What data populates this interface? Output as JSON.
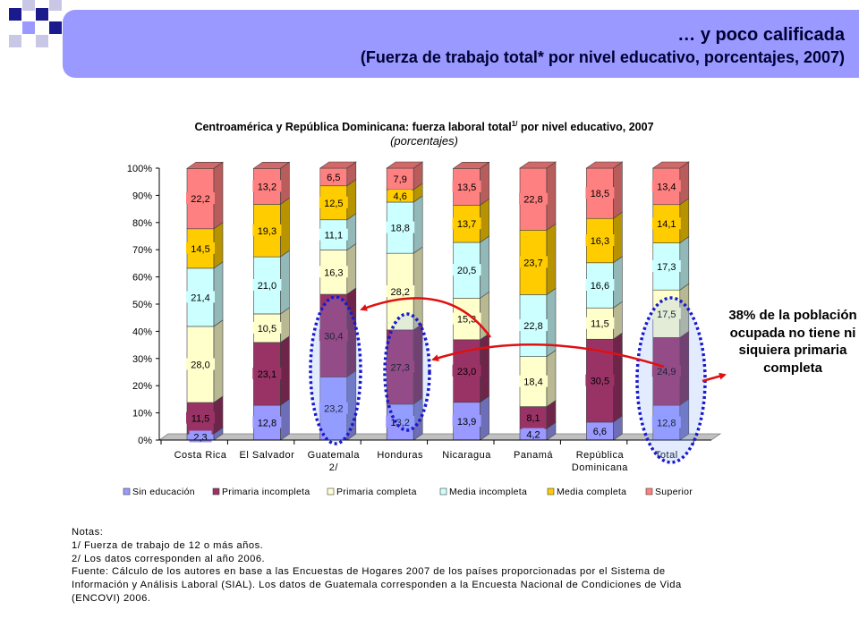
{
  "header": {
    "title": "… y poco calificada",
    "subtitle": "(Fuerza de trabajo total* por nivel educativo, porcentajes, 2007)"
  },
  "colors": {
    "banner": "#9999ff",
    "sin_educacion": "#9999ff",
    "primaria_incompleta": "#993366",
    "primaria_completa": "#ffffcc",
    "media_incompleta": "#ccffff",
    "media_completa": "#ffcc00",
    "superior": "#ff8080",
    "ellipse": "#1a1acc",
    "arrow": "#e01010"
  },
  "chart_data": {
    "type": "bar",
    "stacked": true,
    "title": "Centroamérica y República Dominicana: fuerza laboral total",
    "title_sup": "1/",
    "title_suffix": " por nivel educativo, 2007",
    "subtitle": "(porcentajes)",
    "categories": [
      "Costa Rica",
      "El Salvador",
      "Guatemala 2/",
      "Honduras",
      "Nicaragua",
      "Panamá",
      "República Dominicana",
      "Total"
    ],
    "category_lines": [
      [
        "Costa Rica"
      ],
      [
        "El Salvador"
      ],
      [
        "Guatemala",
        "2/"
      ],
      [
        "Honduras"
      ],
      [
        "Nicaragua"
      ],
      [
        "Panamá"
      ],
      [
        "República",
        "Dominicana"
      ],
      [
        "Total"
      ]
    ],
    "series": [
      {
        "name": "Sin educación",
        "values": [
          2.3,
          12.8,
          23.2,
          13.2,
          13.9,
          4.2,
          6.6,
          12.8
        ],
        "labels": [
          "2,3",
          "12,8",
          "23,2",
          "13,2",
          "13,9",
          "4,2",
          "6,6",
          "12,8"
        ]
      },
      {
        "name": "Primaria incompleta",
        "values": [
          11.5,
          23.1,
          30.4,
          27.3,
          23.0,
          8.1,
          30.5,
          24.9
        ],
        "labels": [
          "11,5",
          "23,1",
          "30,4",
          "27,3",
          "23,0",
          "8,1",
          "30,5",
          "24,9"
        ]
      },
      {
        "name": "Primaria completa",
        "values": [
          28.0,
          10.5,
          16.3,
          28.2,
          15.3,
          18.4,
          11.5,
          17.5
        ],
        "labels": [
          "28,0",
          "10,5",
          "16,3",
          "28,2",
          "15,3",
          "18,4",
          "11,5",
          "17,5"
        ]
      },
      {
        "name": "Media incompleta",
        "values": [
          21.4,
          21.0,
          11.1,
          18.8,
          20.5,
          22.8,
          16.6,
          17.3
        ],
        "labels": [
          "21,4",
          "21,0",
          "11,1",
          "18,8",
          "20,5",
          "22,8",
          "16,6",
          "17,3"
        ]
      },
      {
        "name": "Media completa",
        "values": [
          14.5,
          19.3,
          12.5,
          4.6,
          13.7,
          23.7,
          16.3,
          14.1
        ],
        "labels": [
          "14,5",
          "19,3",
          "12,5",
          "4,6",
          "13,7",
          "23,7",
          "16,3",
          "14,1"
        ]
      },
      {
        "name": "Superior",
        "values": [
          22.2,
          13.2,
          6.5,
          7.9,
          13.5,
          22.8,
          18.5,
          13.4
        ],
        "labels": [
          "22,2",
          "13,2",
          "6,5",
          "7,9",
          "13,5",
          "22,8",
          "18,5",
          "13,4"
        ]
      }
    ],
    "yticks": [
      "0%",
      "10%",
      "20%",
      "30%",
      "40%",
      "50%",
      "60%",
      "70%",
      "80%",
      "90%",
      "100%"
    ],
    "ylim": [
      0,
      100
    ],
    "legend_position": "bottom",
    "grid": false
  },
  "callout": {
    "text": "38% de la población ocupada no tiene ni siquiera primaria completa"
  },
  "notes": [
    "Notas:",
    "1/ Fuerza de trabajo de 12 o más años.",
    "2/ Los datos corresponden al año 2006.",
    "Fuente: Cálculo de los autores en base a las Encuestas de Hogares 2007 de los países proporcionadas por el Sistema de",
    "Información y Análisis Laboral (SIAL). Los datos de Guatemala corresponden a la Encuesta Nacional de Condiciones de Vida",
    "(ENCOVI) 2006."
  ]
}
